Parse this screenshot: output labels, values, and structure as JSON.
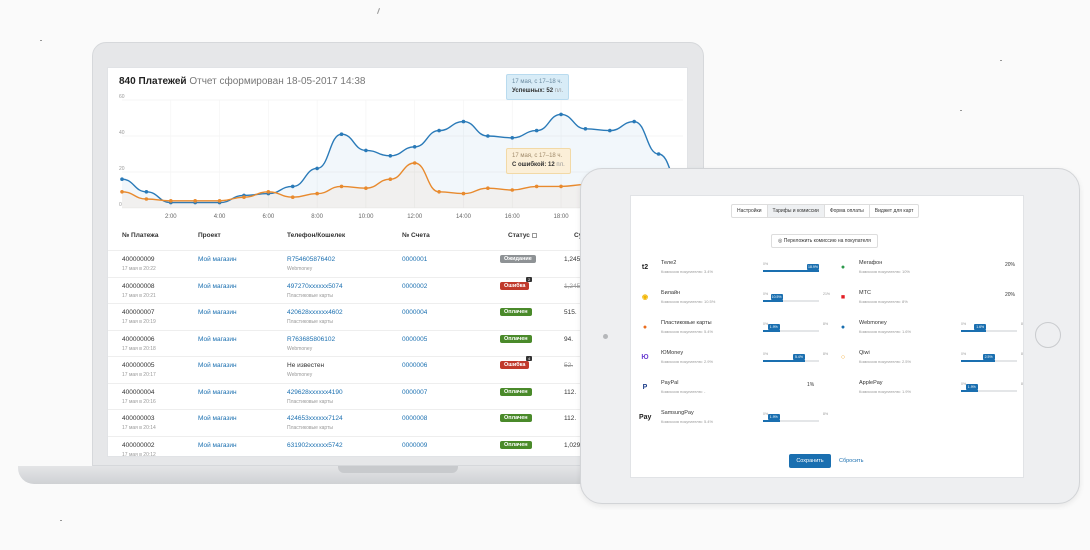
{
  "report": {
    "title": "840 Платежей",
    "subtitle": "Отчет сформирован 18-05-2017 14:38"
  },
  "chart_data": {
    "type": "line",
    "x": [
      "0",
      "1:00",
      "2:00",
      "3:00",
      "4:00",
      "5:00",
      "6:00",
      "7:00",
      "8:00",
      "9:00",
      "10:00",
      "11:00",
      "12:00",
      "13:00",
      "14:00",
      "15:00",
      "16:00",
      "17:00",
      "18:00",
      "19:00",
      "20:00",
      "21:00",
      "22:00",
      "23:00"
    ],
    "x_tick_labels": [
      "2:00",
      "4:00",
      "6:00",
      "8:00",
      "10:00",
      "12:00",
      "14:00",
      "16:00",
      "18:00"
    ],
    "y_tick_labels": [
      "0",
      "20",
      "40",
      "60"
    ],
    "ylim": [
      0,
      60
    ],
    "grid": true,
    "series": [
      {
        "name": "Успешных",
        "color": "#2a7ab8",
        "values": [
          16,
          9,
          3,
          3,
          3,
          7,
          8,
          12,
          22,
          41,
          32,
          29,
          34,
          43,
          48,
          40,
          39,
          43,
          52,
          44,
          43,
          48,
          30,
          10
        ]
      },
      {
        "name": "С ошибкой",
        "color": "#e88a2e",
        "values": [
          9,
          5,
          4,
          4,
          4,
          6,
          9,
          6,
          8,
          12,
          11,
          16,
          25,
          9,
          8,
          11,
          10,
          12,
          12,
          13,
          14,
          13,
          12,
          8
        ]
      }
    ],
    "tooltips": [
      {
        "line1": "17 мая, с 17–18 ч.",
        "line2": "Успешных:",
        "value": "52",
        "unit": "пл."
      },
      {
        "line1": "17 мая, с 17–18 ч.",
        "line2": "С ошибкой:",
        "value": "12",
        "unit": "пл."
      }
    ]
  },
  "table": {
    "headers": {
      "number": "№ Платежа",
      "project": "Проект",
      "phone": "Телефон/Кошелек",
      "account": "№ Счета",
      "status": "Статус",
      "sum": "Су"
    },
    "rows": [
      {
        "number": "400000009",
        "date": "17 мая в 20:22",
        "project": "Мой магазин",
        "phone": "R754605876402",
        "method": "Webmoney",
        "account": "0000001",
        "status": "Ожидание",
        "status_color": "#8e9295",
        "sum": "1,245.",
        "strike": false,
        "badge_count": ""
      },
      {
        "number": "400000008",
        "date": "17 мая в 20:21",
        "project": "Мой магазин",
        "phone": "497270xxxxxx5074",
        "method": "Пластиковые карты",
        "account": "0000002",
        "status": "Ошибка",
        "status_color": "#c0392b",
        "sum": "1,245.",
        "strike": true,
        "badge_count": "2"
      },
      {
        "number": "400000007",
        "date": "17 мая в 20:19",
        "project": "Мой магазин",
        "phone": "420628xxxxxx4602",
        "method": "Пластиковые карты",
        "account": "0000004",
        "status": "Оплачен",
        "status_color": "#4a8a2a",
        "sum": "515.",
        "strike": false,
        "badge_count": ""
      },
      {
        "number": "400000006",
        "date": "17 мая в 20:18",
        "project": "Мой магазин",
        "phone": "R763685806102",
        "method": "Webmoney",
        "account": "0000005",
        "status": "Оплачен",
        "status_color": "#4a8a2a",
        "sum": "94.",
        "strike": false,
        "badge_count": ""
      },
      {
        "number": "400000005",
        "date": "17 мая в 20:17",
        "project": "Мой магазин",
        "phone": "Не известен",
        "method": "Webmoney",
        "account": "0000006",
        "status": "Ошибка",
        "status_color": "#c0392b",
        "sum": "52.",
        "strike": true,
        "badge_count": "4"
      },
      {
        "number": "400000004",
        "date": "17 мая в 20:16",
        "project": "Мой магазин",
        "phone": "429628xxxxxx4190",
        "method": "Пластиковые карты",
        "account": "0000007",
        "status": "Оплачен",
        "status_color": "#4a8a2a",
        "sum": "112.",
        "strike": false,
        "badge_count": ""
      },
      {
        "number": "400000003",
        "date": "17 мая в 20:14",
        "project": "Мой магазин",
        "phone": "424653xxxxxx7124",
        "method": "Пластиковые карты",
        "account": "0000008",
        "status": "Оплачен",
        "status_color": "#4a8a2a",
        "sum": "112.",
        "strike": false,
        "badge_count": ""
      },
      {
        "number": "400000002",
        "date": "17 мая в 20:12",
        "project": "Мой магазин",
        "phone": "631902xxxxxx5742",
        "method": "",
        "account": "0000009",
        "status": "Оплачен",
        "status_color": "#4a8a2a",
        "sum": "1,029.",
        "strike": false,
        "badge_count": ""
      }
    ]
  },
  "tablet": {
    "tabs": [
      "Настройки",
      "Тарифы и комиссии",
      "Форма оплаты",
      "Виджет для карт"
    ],
    "toggle_label": "Переложить комиссию на покупателя",
    "left_methods": [
      {
        "name": "Теле2",
        "commission": "Комиссия покупателю: 3.4%",
        "logo": "t2",
        "logo_color": "#222",
        "fill": 1.0,
        "knob": "18.9%",
        "tick_min": "0%",
        "tick_max": ""
      },
      {
        "name": "Билайн",
        "commission": "Комиссия покупателю: 10.5%",
        "logo": "◉",
        "logo_color": "#f2b500",
        "fill": 0.35,
        "knob": "10.5%",
        "tick_min": "0%",
        "tick_max": "21%"
      },
      {
        "name": "Пластиковые карты",
        "commission": "Комиссия покупателю: 5.4%",
        "logo": "●",
        "logo_color": "#eb6d1e",
        "fill": 0.3,
        "knob": "1.9%",
        "tick_min": "0%",
        "tick_max": "8%"
      },
      {
        "name": "ЮMoney",
        "commission": "Комиссия покупателю: 2.9%",
        "logo": "Ю",
        "logo_color": "#6b3fd1",
        "fill": 0.75,
        "knob": "5.4%",
        "tick_min": "0%",
        "tick_max": "8%"
      },
      {
        "name": "PayPal",
        "commission": "Комиссия покупателю: -",
        "logo": "P",
        "logo_color": "#1d3f8a",
        "fill": 0,
        "knob": "",
        "tick_min": "",
        "tick_max": "",
        "pct": "1%"
      },
      {
        "name": "SamsungPay",
        "commission": "Комиссия покупателю: 5.4%",
        "logo": "Pay",
        "logo_color": "#222",
        "fill": 0.3,
        "knob": "1.9%",
        "tick_min": "0%",
        "tick_max": "8%"
      }
    ],
    "right_methods": [
      {
        "name": "Мегафон",
        "commission": "Комиссия покупателю: 10%",
        "logo": "●",
        "logo_color": "#2e9a4c",
        "fill": 0,
        "knob": "",
        "tick_min": "",
        "tick_max": "",
        "pct": "20%"
      },
      {
        "name": "МТС",
        "commission": "Комиссия покупателю: 8%",
        "logo": "■",
        "logo_color": "#e31e24",
        "fill": 0,
        "knob": "",
        "tick_min": "",
        "tick_max": "",
        "pct": "20%"
      },
      {
        "name": "Webmoney",
        "commission": "Комиссия покупателю: 1.6%",
        "logo": "●",
        "logo_color": "#1a6fb0",
        "fill": 0.45,
        "knob": "1.6%",
        "tick_min": "0%",
        "tick_max": "8%"
      },
      {
        "name": "Qiwi",
        "commission": "Комиссия покупателю: 2.5%",
        "logo": "○",
        "logo_color": "#f29f1a",
        "fill": 0.6,
        "knob": "2.5%",
        "tick_min": "0%",
        "tick_max": "8%"
      },
      {
        "name": "ApplePay",
        "commission": "Комиссия покупателю: 1.9%",
        "logo": "",
        "logo_color": "#222",
        "fill": 0.3,
        "knob": "1.9%",
        "tick_min": "0%",
        "tick_max": "8%"
      }
    ],
    "save_label": "Сохранить",
    "reset_label": "Сбросить"
  }
}
